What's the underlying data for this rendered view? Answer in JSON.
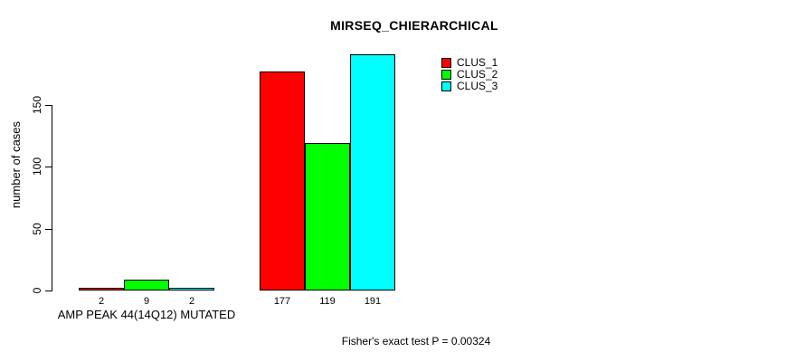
{
  "chart_data": {
    "type": "bar",
    "title": "MIRSEQ_CHIERARCHICAL",
    "xlabel": "",
    "ylabel": "number of cases",
    "ylim": [
      0,
      195
    ],
    "yticks": [
      0,
      50,
      100,
      150
    ],
    "grid": false,
    "legend_position": "top-right",
    "categories": [
      "AMP PEAK 44(14Q12) MUTATED",
      ""
    ],
    "series": [
      {
        "name": "CLUS_1",
        "color": "#FF0000",
        "values": [
          2,
          177
        ]
      },
      {
        "name": "CLUS_2",
        "color": "#00FF00",
        "values": [
          9,
          119
        ]
      },
      {
        "name": "CLUS_3",
        "color": "#00FFFF",
        "values": [
          2,
          191
        ]
      }
    ],
    "bar_labels": [
      [
        "2",
        "9",
        "2"
      ],
      [
        "177",
        "119",
        "191"
      ]
    ],
    "annotation": "Fisher's exact test P = 0.00324"
  },
  "colors": {
    "background": "#FFFFFF",
    "axis": "#000000",
    "bar_border": "#000000"
  }
}
